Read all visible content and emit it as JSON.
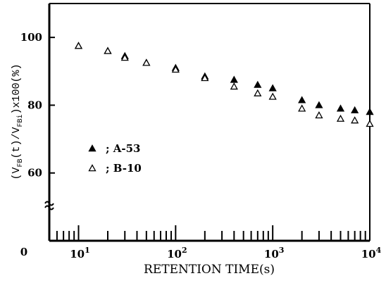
{
  "chart_data": {
    "type": "scatter",
    "xscale": "log",
    "xlim": [
      5,
      10000
    ],
    "ylim": [
      40,
      110
    ],
    "xlabel": "RETENTION TIME(s)",
    "ylabel": "(V_FB(t)/V_FBi)x100(%)",
    "ylabel_parts": {
      "open": "(V",
      "sub1": "FB",
      "mid": "(t)/V",
      "sub2": "FBi",
      "close": ")x100(%)"
    },
    "x_ticklabels": [
      {
        "value": 10,
        "base": "10",
        "exp": "1"
      },
      {
        "value": 100,
        "base": "10",
        "exp": "2"
      },
      {
        "value": 1000,
        "base": "10",
        "exp": "3"
      },
      {
        "value": 10000,
        "base": "10",
        "exp": "4"
      }
    ],
    "origin_label": "0",
    "y_ticks": [
      60,
      80,
      100
    ],
    "y_break": true,
    "grid": false,
    "legend_position": "middle-left",
    "series": [
      {
        "name": "A-53",
        "legend_label": "; A-53",
        "marker": "filled-triangle",
        "x": [
          10,
          20,
          30,
          50,
          100,
          200,
          400,
          700,
          1000,
          2000,
          3000,
          5000,
          7000,
          10000
        ],
        "y": [
          97.5,
          96,
          94.5,
          92.5,
          91,
          88.5,
          87.5,
          86,
          85,
          81.5,
          80,
          79,
          78.5,
          78
        ]
      },
      {
        "name": "B-10",
        "legend_label": "; B-10",
        "marker": "open-triangle",
        "x": [
          10,
          20,
          30,
          50,
          100,
          200,
          400,
          700,
          1000,
          2000,
          3000,
          5000,
          7000,
          10000
        ],
        "y": [
          97.5,
          96,
          94,
          92.5,
          90.5,
          88,
          85.5,
          83.5,
          82.5,
          79,
          77,
          76,
          75.5,
          74.5
        ]
      }
    ]
  }
}
